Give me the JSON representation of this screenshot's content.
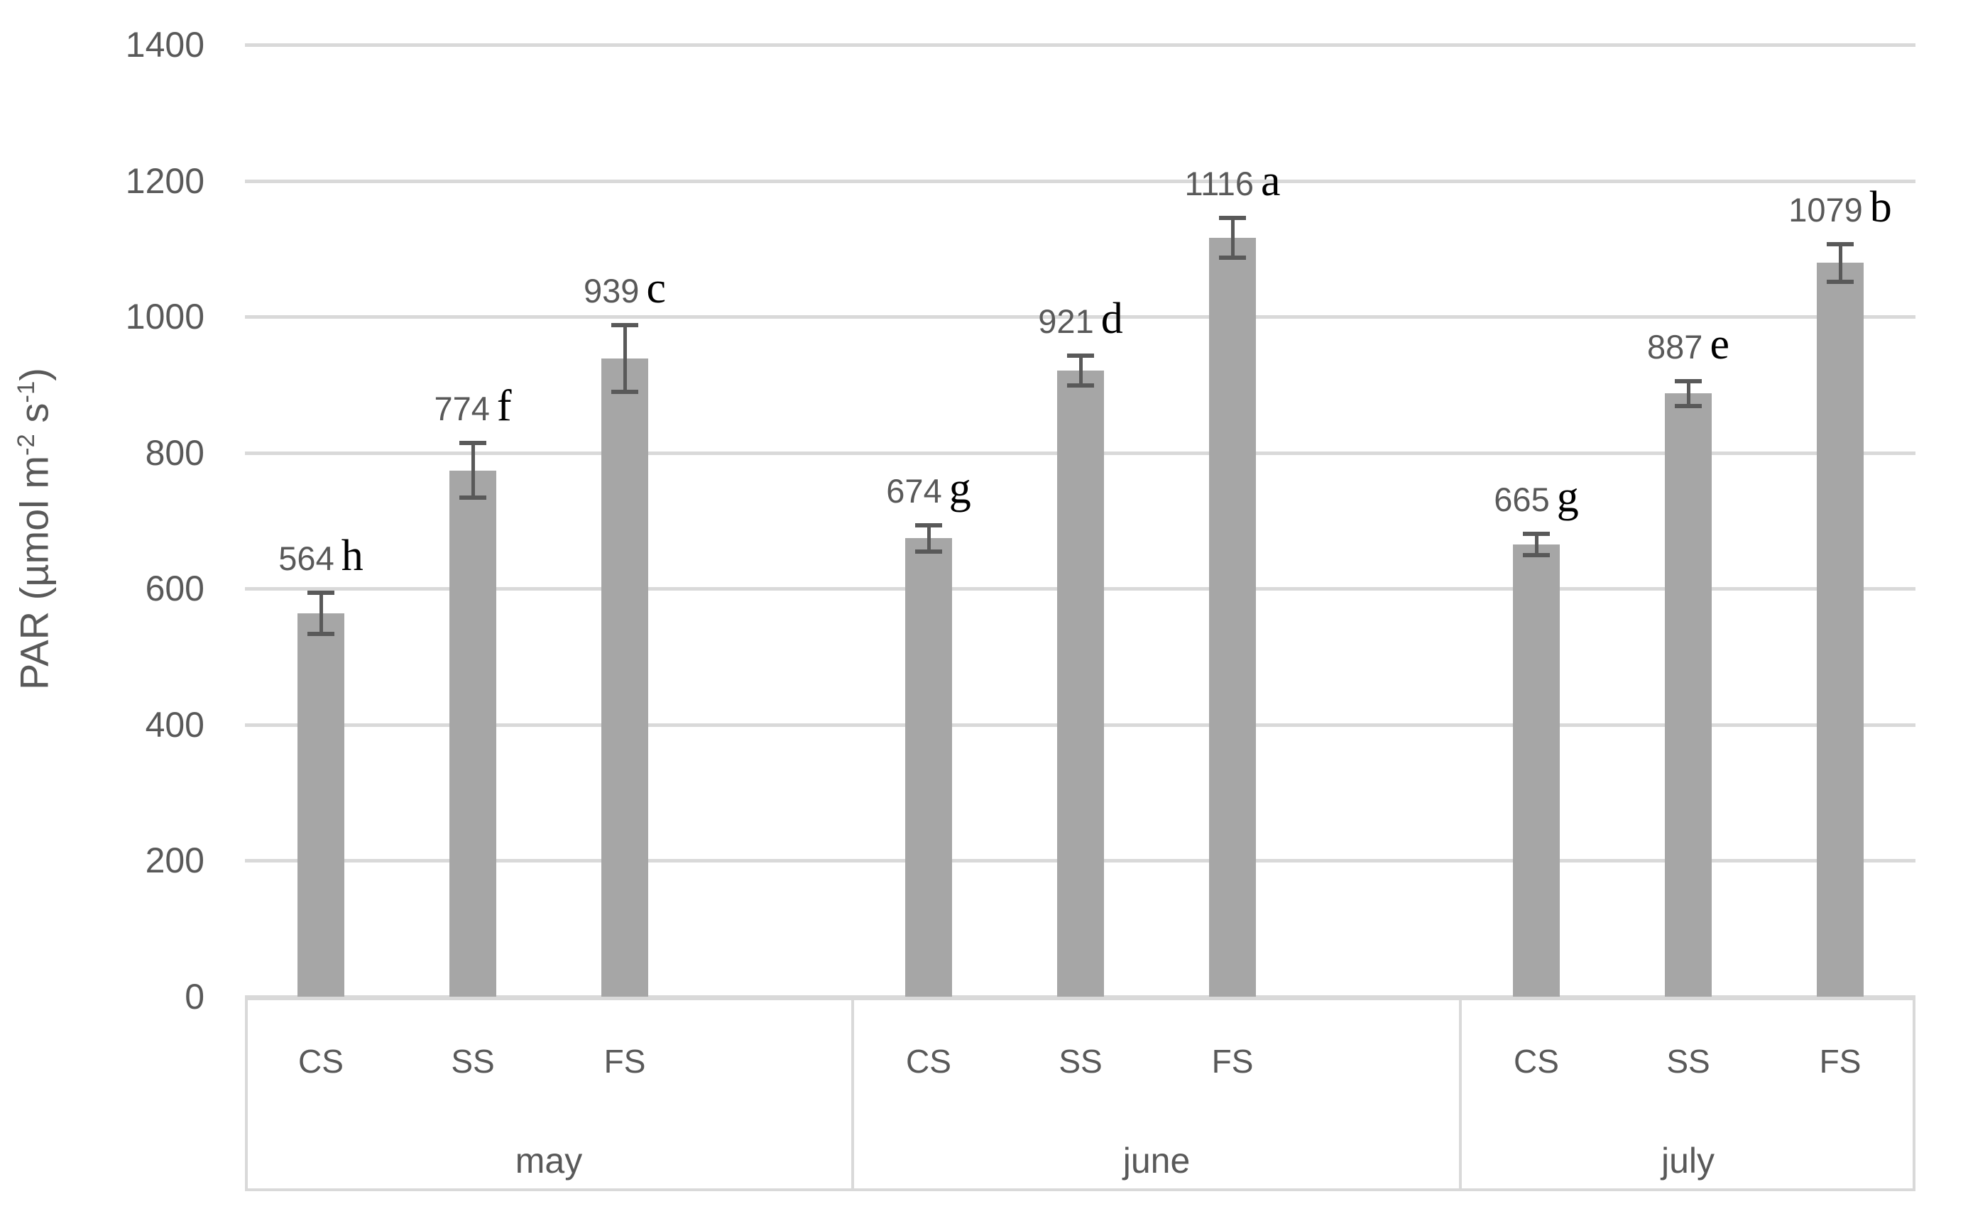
{
  "chart_data": {
    "type": "bar",
    "title": "",
    "ylabel": "PAR (µmol m⁻² s⁻¹)",
    "ylabel_parts": [
      {
        "t": "PAR (µmol m"
      },
      {
        "t": "-2",
        "sup": true
      },
      {
        "t": " s",
        "sup": false
      },
      {
        "t": "-1",
        "sup": true
      },
      {
        "t": ")"
      }
    ],
    "xlabel": "",
    "ylim": [
      0,
      1400
    ],
    "yticks": [
      0,
      200,
      400,
      600,
      800,
      1000,
      1200,
      1400
    ],
    "grid": "horizontal",
    "legend": "none",
    "categories": [
      "may",
      "june",
      "july"
    ],
    "bar_group_labels": [
      "CS",
      "SS",
      "FS"
    ],
    "series": [
      {
        "name": "CS",
        "values": [
          564,
          674,
          665
        ],
        "errors": [
          30,
          19,
          16
        ],
        "sig_letters": [
          "h",
          "g",
          "g"
        ]
      },
      {
        "name": "SS",
        "values": [
          774,
          921,
          887
        ],
        "errors": [
          40,
          22,
          18
        ],
        "sig_letters": [
          "f",
          "d",
          "e"
        ]
      },
      {
        "name": "FS",
        "values": [
          939,
          1116,
          1079
        ],
        "errors": [
          49,
          29,
          28
        ],
        "sig_letters": [
          "c",
          "a",
          "b"
        ]
      }
    ],
    "data_labels": [
      "564 h",
      "774 f",
      "939 c",
      "674 g",
      "921 d",
      "1116 a",
      "665 g",
      "887 e",
      "1079 b"
    ],
    "colors": {
      "bar": "#a6a6a6",
      "error_bar": "#595959",
      "gridline": "#d9d9d9",
      "axis_text": "#595959",
      "sig_letter": "#000000"
    }
  }
}
